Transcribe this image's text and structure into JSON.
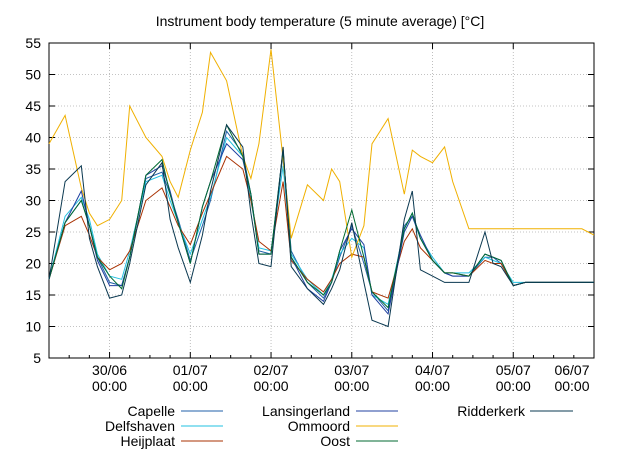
{
  "chart_data": {
    "type": "line",
    "title": "Instrument body temperature (5 minute average) [°C]",
    "xlabel": "",
    "ylabel": "",
    "ylim": [
      5,
      55
    ],
    "yticks": [
      5,
      10,
      15,
      20,
      25,
      30,
      35,
      40,
      45,
      50,
      55
    ],
    "xlim": [
      0,
      6.75
    ],
    "x_tick_positions": [
      0.75,
      1.75,
      2.75,
      3.75,
      4.75,
      5.75,
      6.75
    ],
    "x_tick_labels": [
      {
        "date": "30/06",
        "time": "00:00"
      },
      {
        "date": "01/07",
        "time": "00:00"
      },
      {
        "date": "02/07",
        "time": "00:00"
      },
      {
        "date": "03/07",
        "time": "00:00"
      },
      {
        "date": "04/07",
        "time": "00:00"
      },
      {
        "date": "05/07",
        "time": "00:00"
      },
      {
        "date": "06/07",
        "time": "00:00"
      }
    ],
    "grid": true,
    "legend_position": "bottom",
    "x": [
      0.0,
      0.2,
      0.4,
      0.5,
      0.6,
      0.75,
      0.9,
      1.0,
      1.2,
      1.4,
      1.5,
      1.6,
      1.75,
      1.9,
      2.0,
      2.2,
      2.4,
      2.5,
      2.6,
      2.75,
      2.9,
      3.0,
      3.2,
      3.4,
      3.5,
      3.6,
      3.75,
      3.9,
      4.0,
      4.2,
      4.4,
      4.5,
      4.6,
      4.75,
      4.9,
      5.0,
      5.2,
      5.4,
      5.5,
      5.6,
      5.75,
      5.9,
      6.0,
      6.2,
      6.4,
      6.5,
      6.6,
      6.75
    ],
    "series": [
      {
        "name": "Capelle",
        "color": "#1f5fa8",
        "values": [
          17.5,
          26.5,
          30.0,
          26.0,
          21.0,
          17.0,
          16.5,
          21.0,
          33.5,
          34.5,
          31.0,
          27.0,
          20.5,
          26.0,
          30.0,
          41.0,
          37.5,
          31.0,
          22.0,
          21.5,
          37.5,
          22.0,
          17.0,
          14.5,
          17.0,
          21.0,
          26.0,
          20.0,
          15.5,
          12.5,
          26.0,
          27.5,
          24.0,
          20.5,
          18.5,
          18.0,
          18.0,
          21.0,
          21.0,
          20.0,
          16.5,
          17.0,
          17.0,
          17.0,
          17.0,
          17.0,
          17.0,
          17.0
        ]
      },
      {
        "name": "Delfshaven",
        "color": "#22c0e0",
        "values": [
          17.5,
          27.5,
          30.5,
          27.0,
          21.5,
          18.0,
          17.5,
          22.0,
          33.0,
          34.0,
          30.0,
          26.5,
          21.5,
          27.0,
          30.5,
          40.0,
          37.0,
          30.0,
          22.5,
          22.0,
          35.5,
          21.5,
          17.5,
          15.0,
          17.5,
          21.5,
          24.0,
          22.5,
          15.0,
          13.5,
          25.5,
          28.0,
          24.0,
          21.0,
          18.5,
          18.5,
          18.5,
          21.0,
          20.5,
          20.0,
          17.0,
          17.0,
          17.0,
          17.0,
          17.0,
          17.0,
          17.0,
          17.0
        ]
      },
      {
        "name": "Heijplaat",
        "color": "#a83000",
        "values": [
          17.5,
          26.0,
          27.5,
          24.5,
          21.0,
          19.0,
          20.0,
          22.0,
          30.0,
          32.0,
          29.0,
          26.0,
          23.0,
          28.0,
          31.0,
          37.0,
          35.0,
          30.0,
          23.5,
          22.0,
          33.0,
          20.5,
          17.5,
          15.5,
          17.5,
          20.0,
          21.5,
          21.0,
          15.5,
          14.5,
          23.5,
          25.5,
          22.5,
          20.5,
          18.5,
          18.5,
          18.0,
          20.5,
          20.0,
          20.0,
          16.5,
          17.0,
          17.0,
          17.0,
          17.0,
          17.0,
          17.0,
          17.0
        ]
      },
      {
        "name": "Lansingerland",
        "color": "#2040a0",
        "values": [
          17.5,
          26.5,
          31.5,
          26.0,
          20.5,
          16.5,
          16.5,
          21.0,
          34.0,
          35.5,
          31.5,
          26.5,
          20.0,
          29.0,
          33.0,
          39.0,
          36.5,
          31.0,
          21.5,
          21.5,
          38.0,
          21.0,
          16.0,
          14.0,
          17.0,
          22.0,
          25.5,
          23.0,
          15.0,
          12.0,
          25.0,
          27.5,
          24.5,
          20.5,
          18.5,
          18.0,
          18.0,
          21.5,
          21.0,
          20.5,
          16.5,
          17.0,
          17.0,
          17.0,
          17.0,
          17.0,
          17.0,
          17.0
        ]
      },
      {
        "name": "Ommoord",
        "color": "#f0b000",
        "values": [
          39.0,
          43.5,
          32.0,
          28.0,
          26.0,
          27.0,
          30.0,
          45.0,
          40.0,
          37.0,
          33.0,
          30.5,
          38.0,
          44.0,
          53.5,
          49.0,
          37.0,
          33.5,
          39.0,
          54.0,
          36.5,
          24.0,
          32.5,
          30.0,
          35.0,
          33.0,
          21.0,
          26.0,
          39.0,
          43.0,
          31.0,
          38.0,
          37.0,
          36.0,
          38.5,
          33.0,
          25.5,
          25.5,
          25.5,
          25.5,
          25.5,
          25.5,
          25.5,
          25.5,
          25.5,
          25.5,
          25.5,
          24.5
        ]
      },
      {
        "name": "Oost",
        "color": "#006a30",
        "values": [
          17.5,
          26.5,
          30.0,
          26.0,
          21.0,
          18.0,
          16.0,
          21.0,
          34.0,
          36.5,
          31.0,
          26.5,
          20.0,
          29.0,
          33.0,
          42.0,
          37.0,
          31.0,
          21.5,
          21.5,
          38.0,
          21.0,
          17.0,
          15.0,
          17.0,
          22.0,
          28.5,
          21.0,
          15.5,
          13.0,
          25.5,
          28.0,
          24.0,
          20.5,
          18.5,
          18.5,
          18.0,
          21.5,
          21.0,
          20.5,
          16.5,
          17.0,
          17.0,
          17.0,
          17.0,
          17.0,
          17.0,
          17.0
        ]
      },
      {
        "name": "Ridderkerk",
        "color": "#0a3850",
        "values": [
          17.5,
          33.0,
          35.5,
          24.0,
          19.5,
          14.5,
          15.0,
          20.0,
          32.5,
          36.0,
          27.0,
          22.5,
          17.0,
          24.5,
          31.5,
          42.0,
          38.5,
          28.0,
          20.0,
          19.5,
          38.5,
          19.5,
          16.0,
          13.5,
          16.0,
          19.0,
          26.5,
          17.0,
          11.0,
          10.0,
          27.0,
          31.5,
          19.0,
          18.0,
          17.0,
          17.0,
          17.0,
          25.0,
          20.0,
          19.5,
          16.5,
          17.0,
          17.0,
          17.0,
          17.0,
          17.0,
          17.0,
          17.0
        ]
      }
    ]
  }
}
